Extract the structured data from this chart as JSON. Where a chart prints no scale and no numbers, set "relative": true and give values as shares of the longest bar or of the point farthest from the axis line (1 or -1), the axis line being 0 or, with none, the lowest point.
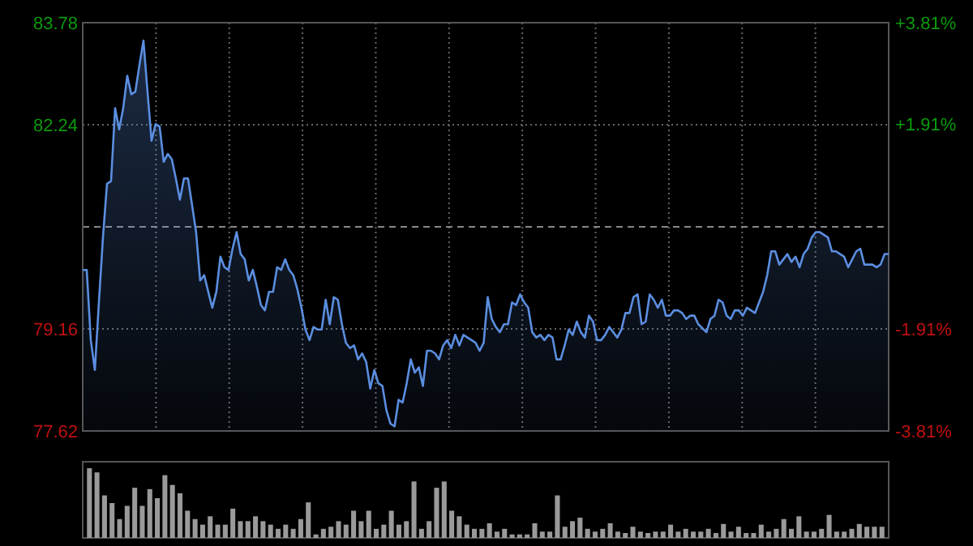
{
  "chart_data": [
    {
      "type": "area",
      "categories": [
        null,
        null,
        null,
        null,
        null,
        null,
        null,
        null,
        null,
        null,
        null,
        null,
        null,
        null,
        null,
        null,
        null,
        null,
        null,
        null,
        null,
        null,
        null,
        null,
        null,
        null,
        null,
        null,
        null,
        null,
        null,
        null,
        null,
        null,
        null,
        null,
        null,
        null,
        null,
        null,
        null,
        null,
        null,
        null,
        null,
        null,
        null,
        null,
        null,
        null,
        null,
        null,
        null,
        null,
        null,
        null,
        null,
        null,
        null,
        null,
        null,
        null,
        null,
        null,
        null,
        null,
        null,
        null,
        null,
        null,
        null,
        null,
        null,
        null,
        null,
        null,
        null,
        null,
        null,
        null,
        null,
        null,
        null,
        null,
        null,
        null,
        null,
        null,
        null,
        null,
        null,
        null,
        null,
        null,
        null,
        null,
        null,
        null,
        null,
        null,
        null,
        null,
        null,
        null,
        null,
        null,
        null,
        null,
        null,
        null,
        null,
        null,
        null,
        null,
        null,
        null,
        null,
        null,
        null,
        null,
        null,
        null,
        null,
        null,
        null,
        null,
        null,
        null,
        null,
        null,
        null,
        null,
        null,
        null,
        null,
        null,
        null,
        null,
        null,
        null,
        null,
        null,
        null,
        null,
        null,
        null,
        null,
        null,
        null,
        null,
        null,
        null,
        null,
        null,
        null,
        null,
        null,
        null,
        null,
        null,
        null,
        null,
        null,
        null,
        null,
        null,
        null,
        null,
        null,
        null,
        null,
        null,
        null,
        null,
        null,
        null,
        null,
        null,
        null,
        null,
        null,
        null,
        null,
        null,
        null,
        null,
        null,
        null,
        null,
        null,
        null,
        null,
        null,
        null,
        null,
        null,
        null,
        null,
        null,
        null
      ],
      "ylim": [
        77.62,
        83.78
      ],
      "yticks": [
        77.62,
        79.16,
        82.24,
        83.78
      ],
      "y2lim": [
        -3.81,
        3.81
      ],
      "y2ticks": [
        {
          "value": -3.81,
          "label": "-3.81%"
        },
        {
          "value": -1.91,
          "label": "-1.91%"
        },
        {
          "value": 1.91,
          "label": "+1.91%"
        },
        {
          "value": 3.81,
          "label": "+3.81%"
        }
      ],
      "grid": true,
      "tick_labels": "y",
      "line_style": "solid",
      "ref_lines": [
        {
          "axis": "y",
          "value": 80.7,
          "label": null,
          "line_style": "dashed"
        }
      ],
      "series": [
        {
          "color": "#5b8ee0",
          "values": [
            80.05,
            80.05,
            78.99,
            78.54,
            79.56,
            80.54,
            81.35,
            81.39,
            82.49,
            82.17,
            82.49,
            82.98,
            82.7,
            82.74,
            83.14,
            83.51,
            82.74,
            82.0,
            82.25,
            82.21,
            81.68,
            81.8,
            81.72,
            81.43,
            81.11,
            81.43,
            81.43,
            81.03,
            80.62,
            79.89,
            79.97,
            79.72,
            79.48,
            79.72,
            80.25,
            80.09,
            80.05,
            80.37,
            80.62,
            80.29,
            80.21,
            79.89,
            80.05,
            79.8,
            79.52,
            79.44,
            79.72,
            79.72,
            80.09,
            80.05,
            80.21,
            80.05,
            79.97,
            79.76,
            79.48,
            79.15,
            78.99,
            79.19,
            79.15,
            79.15,
            79.6,
            79.23,
            79.64,
            79.6,
            79.23,
            78.95,
            78.87,
            78.91,
            78.7,
            78.79,
            78.66,
            78.26,
            78.54,
            78.34,
            78.3,
            77.93,
            77.73,
            77.69,
            78.09,
            78.05,
            78.34,
            78.7,
            78.5,
            78.58,
            78.3,
            78.83,
            78.83,
            78.79,
            78.7,
            78.91,
            78.99,
            78.87,
            79.07,
            78.91,
            79.07,
            79.03,
            78.99,
            78.95,
            78.83,
            78.95,
            79.64,
            79.31,
            79.19,
            79.11,
            79.23,
            79.23,
            79.56,
            79.52,
            79.68,
            79.56,
            79.48,
            79.11,
            79.03,
            79.07,
            78.99,
            79.07,
            79.03,
            78.7,
            78.7,
            78.91,
            79.15,
            79.07,
            79.27,
            79.11,
            79.03,
            79.36,
            79.27,
            78.99,
            78.99,
            79.07,
            79.19,
            79.11,
            79.03,
            79.15,
            79.4,
            79.4,
            79.64,
            79.68,
            79.23,
            79.27,
            79.68,
            79.6,
            79.48,
            79.6,
            79.36,
            79.36,
            79.44,
            79.44,
            79.4,
            79.31,
            79.36,
            79.36,
            79.23,
            79.17,
            79.11,
            79.31,
            79.36,
            79.6,
            79.56,
            79.36,
            79.31,
            79.44,
            79.44,
            79.36,
            79.48,
            79.44,
            79.4,
            79.56,
            79.72,
            79.97,
            80.33,
            80.33,
            80.13,
            80.21,
            80.29,
            80.17,
            80.25,
            80.09,
            80.29,
            80.37,
            80.54,
            80.62,
            80.62,
            80.58,
            80.54,
            80.33,
            80.33,
            80.29,
            80.25,
            80.09,
            80.21,
            80.33,
            80.37,
            80.13,
            80.13,
            80.13,
            80.09,
            80.13,
            80.29,
            80.29
          ]
        }
      ]
    },
    {
      "type": "bar",
      "relative": true,
      "categories": [
        null,
        null,
        null,
        null,
        null,
        null,
        null,
        null,
        null,
        null,
        null,
        null,
        null,
        null,
        null,
        null,
        null,
        null,
        null,
        null,
        null,
        null,
        null,
        null,
        null,
        null,
        null,
        null,
        null,
        null,
        null,
        null,
        null,
        null,
        null,
        null,
        null,
        null,
        null,
        null,
        null,
        null,
        null,
        null,
        null,
        null,
        null,
        null,
        null,
        null,
        null,
        null,
        null,
        null,
        null,
        null,
        null,
        null,
        null,
        null,
        null,
        null,
        null,
        null,
        null,
        null,
        null,
        null,
        null,
        null,
        null,
        null,
        null,
        null,
        null,
        null,
        null,
        null,
        null,
        null,
        null,
        null,
        null,
        null,
        null,
        null,
        null,
        null,
        null,
        null,
        null,
        null,
        null,
        null,
        null,
        null,
        null,
        null,
        null,
        null,
        null,
        null,
        null,
        null,
        null,
        null
      ],
      "series": [
        {
          "color": "#9a9a9a",
          "values": [
            1.0,
            0.94,
            0.61,
            0.5,
            0.27,
            0.46,
            0.72,
            0.46,
            0.7,
            0.57,
            0.9,
            0.76,
            0.64,
            0.39,
            0.27,
            0.19,
            0.31,
            0.19,
            0.19,
            0.42,
            0.24,
            0.24,
            0.31,
            0.24,
            0.19,
            0.13,
            0.19,
            0.13,
            0.27,
            0.51,
            0.05,
            0.13,
            0.16,
            0.24,
            0.19,
            0.39,
            0.24,
            0.39,
            0.13,
            0.19,
            0.39,
            0.19,
            0.24,
            0.81,
            0.13,
            0.24,
            0.72,
            0.81,
            0.39,
            0.31,
            0.19,
            0.13,
            0.13,
            0.21,
            0.09,
            0.13,
            0.05,
            0.05,
            0.05,
            0.21,
            0.09,
            0.09,
            0.61,
            0.16,
            0.24,
            0.29,
            0.13,
            0.09,
            0.13,
            0.21,
            0.09,
            0.07,
            0.16,
            0.09,
            0.07,
            0.09,
            0.09,
            0.19,
            0.09,
            0.13,
            0.09,
            0.09,
            0.13,
            0.07,
            0.2,
            0.09,
            0.16,
            0.07,
            0.07,
            0.19,
            0.09,
            0.13,
            0.27,
            0.13,
            0.31,
            0.09,
            0.09,
            0.13,
            0.33,
            0.09,
            0.09,
            0.13,
            0.2,
            0.16,
            0.16,
            0.16
          ]
        }
      ]
    }
  ]
}
